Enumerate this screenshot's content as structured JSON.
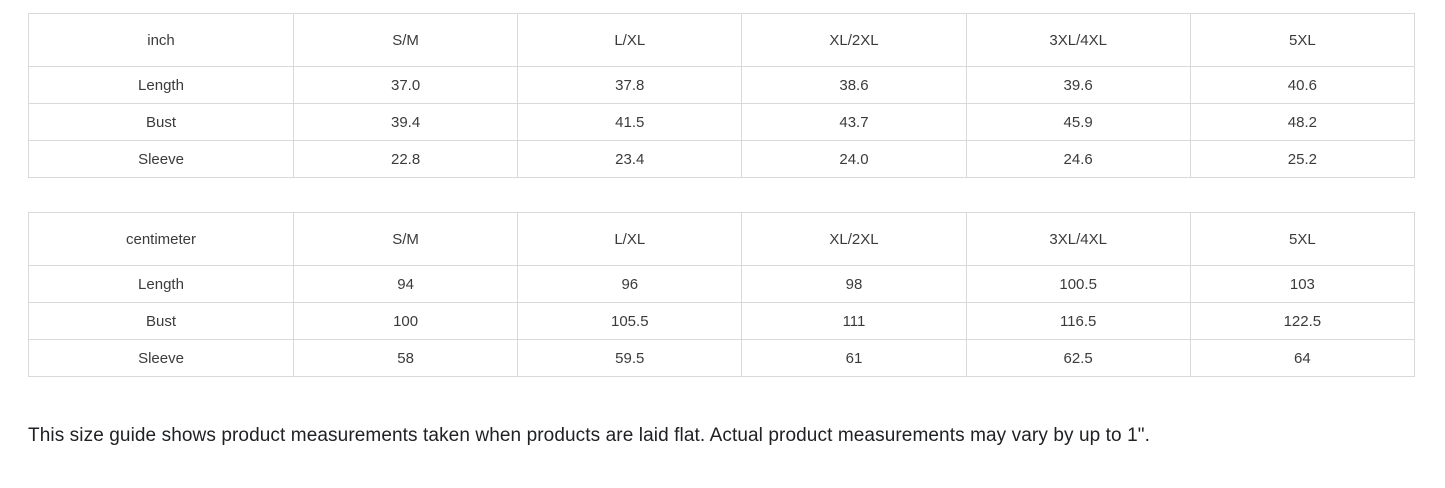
{
  "tables": [
    {
      "unit_label": "inch",
      "columns": [
        "S/M",
        "L/XL",
        "XL/2XL",
        "3XL/4XL",
        "5XL"
      ],
      "rows": [
        {
          "label": "Length",
          "values": [
            "37.0",
            "37.8",
            "38.6",
            "39.6",
            "40.6"
          ]
        },
        {
          "label": "Bust",
          "values": [
            "39.4",
            "41.5",
            "43.7",
            "45.9",
            "48.2"
          ]
        },
        {
          "label": "Sleeve",
          "values": [
            "22.8",
            "23.4",
            "24.0",
            "24.6",
            "25.2"
          ]
        }
      ]
    },
    {
      "unit_label": "centimeter",
      "columns": [
        "S/M",
        "L/XL",
        "XL/2XL",
        "3XL/4XL",
        "5XL"
      ],
      "rows": [
        {
          "label": "Length",
          "values": [
            "94",
            "96",
            "98",
            "100.5",
            "103"
          ]
        },
        {
          "label": "Bust",
          "values": [
            "100",
            "105.5",
            "111",
            "116.5",
            "122.5"
          ]
        },
        {
          "label": "Sleeve",
          "values": [
            "58",
            "59.5",
            "61",
            "62.5",
            "64"
          ]
        }
      ]
    }
  ],
  "note": "This size guide shows product measurements taken when products are laid flat. Actual product measurements may vary by up to 1\".",
  "colors": {
    "border": "#d9d9d9",
    "table_text": "#3b3b3b",
    "note_text": "#202124",
    "background": "#ffffff"
  }
}
